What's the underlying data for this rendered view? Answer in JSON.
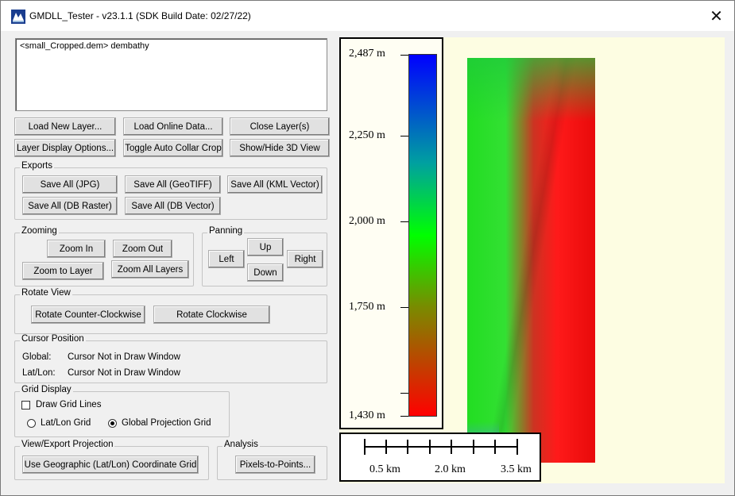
{
  "window": {
    "title": "GMDLL_Tester - v23.1.1 (SDK Build Date: 02/27/22)",
    "close_glyph": "✕"
  },
  "layers_text": "<small_Cropped.dem> dembathy",
  "buttons": {
    "load_new_layer": "Load New Layer...",
    "load_online_data": "Load Online Data...",
    "close_layers": "Close Layer(s)",
    "layer_display_options": "Layer Display Options...",
    "toggle_auto_collar_crop": "Toggle Auto Collar Crop",
    "show_hide_3d": "Show/Hide 3D View"
  },
  "exports": {
    "label": "Exports",
    "save_jpg": "Save All (JPG)",
    "save_geotiff": "Save All (GeoTIFF)",
    "save_kml": "Save All (KML Vector)",
    "save_db_raster": "Save All (DB Raster)",
    "save_db_vector": "Save All (DB Vector)"
  },
  "zooming": {
    "label": "Zooming",
    "zoom_in": "Zoom In",
    "zoom_out": "Zoom Out",
    "zoom_to_layer": "Zoom to Layer",
    "zoom_all_layers": "Zoom All Layers"
  },
  "panning": {
    "label": "Panning",
    "up": "Up",
    "left": "Left",
    "right": "Right",
    "down": "Down"
  },
  "rotate": {
    "label": "Rotate View",
    "ccw": "Rotate Counter-Clockwise",
    "cw": "Rotate Clockwise"
  },
  "cursor": {
    "label": "Cursor Position",
    "global_label": "Global:",
    "global_value": "Cursor Not in Draw Window",
    "latlon_label": "Lat/Lon:",
    "latlon_value": "Cursor Not in Draw Window"
  },
  "grid": {
    "label": "Grid Display",
    "draw_grid_lines": "Draw Grid Lines",
    "draw_grid_checked": false,
    "latlon_grid": "Lat/Lon Grid",
    "global_projection_grid": "Global Projection Grid",
    "selected": "global_projection_grid"
  },
  "projection": {
    "label": "View/Export Projection",
    "button": "Use Geographic (Lat/Lon) Coordinate Grid"
  },
  "analysis": {
    "label": "Analysis",
    "button": "Pixels-to-Points..."
  },
  "legend": {
    "labels": [
      "2,487 m",
      "2,250 m",
      "2,000 m",
      "1,750 m",
      "1,430 m"
    ],
    "colors": {
      "high": "#0000ff",
      "mid": "#00ff00",
      "low": "#ff0000"
    }
  },
  "scale_bar": {
    "labels": [
      "0.5 km",
      "2.0 km",
      "3.5 km"
    ]
  }
}
